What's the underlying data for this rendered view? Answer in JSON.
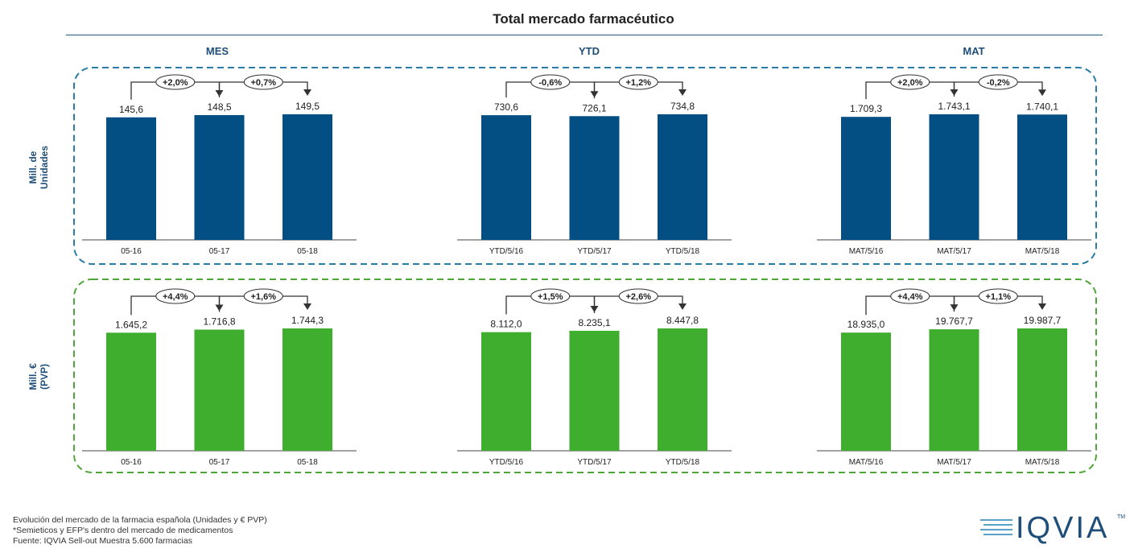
{
  "title": "Total mercado farmacéutico",
  "column_headers": [
    "MES",
    "YTD",
    "MAT"
  ],
  "row_labels": [
    {
      "lines": [
        "Mill. de",
        "Unidades"
      ]
    },
    {
      "lines": [
        "Mill. €",
        "(PVP)"
      ]
    }
  ],
  "colors": {
    "units": "#034f84",
    "euros": "#3fad2e",
    "units_frame": "#2a7ca6",
    "euros_frame": "#4fa43a",
    "header_text": "#1f4e79"
  },
  "chart_data": [
    {
      "type": "bar",
      "row": "units",
      "group": "MES",
      "categories": [
        "05-16",
        "05-17",
        "05-18"
      ],
      "values": [
        145.6,
        148.5,
        149.5
      ],
      "value_labels": [
        "145,6",
        "148,5",
        "149,5"
      ],
      "changes": [
        "+2,0%",
        "+0,7%"
      ]
    },
    {
      "type": "bar",
      "row": "units",
      "group": "YTD",
      "categories": [
        "YTD/5/16",
        "YTD/5/17",
        "YTD/5/18"
      ],
      "values": [
        730.6,
        726.1,
        734.8
      ],
      "value_labels": [
        "730,6",
        "726,1",
        "734,8"
      ],
      "changes": [
        "-0,6%",
        "+1,2%"
      ]
    },
    {
      "type": "bar",
      "row": "units",
      "group": "MAT",
      "categories": [
        "MAT/5/16",
        "MAT/5/17",
        "MAT/5/18"
      ],
      "values": [
        1709.3,
        1743.1,
        1740.1
      ],
      "value_labels": [
        "1.709,3",
        "1.743,1",
        "1.740,1"
      ],
      "changes": [
        "+2,0%",
        "-0,2%"
      ]
    },
    {
      "type": "bar",
      "row": "euros",
      "group": "MES",
      "categories": [
        "05-16",
        "05-17",
        "05-18"
      ],
      "values": [
        1645.2,
        1716.8,
        1744.3
      ],
      "value_labels": [
        "1.645,2",
        "1.716,8",
        "1.744,3"
      ],
      "changes": [
        "+4,4%",
        "+1,6%"
      ]
    },
    {
      "type": "bar",
      "row": "euros",
      "group": "YTD",
      "categories": [
        "YTD/5/16",
        "YTD/5/17",
        "YTD/5/18"
      ],
      "values": [
        8112.0,
        8235.1,
        8447.8
      ],
      "value_labels": [
        "8.112,0",
        "8.235,1",
        "8.447,8"
      ],
      "changes": [
        "+1,5%",
        "+2,6%"
      ]
    },
    {
      "type": "bar",
      "row": "euros",
      "group": "MAT",
      "categories": [
        "MAT/5/16",
        "MAT/5/17",
        "MAT/5/18"
      ],
      "values": [
        18935.0,
        19767.7,
        19987.7
      ],
      "value_labels": [
        "18.935,0",
        "19.767,7",
        "19.987,7"
      ],
      "changes": [
        "+4,4%",
        "+1,1%"
      ]
    }
  ],
  "footnotes": [
    "Evolución del mercado de la farmacia española (Unidades y € PVP)",
    "*Semieticos y EFP's dentro del mercado de medicamentos",
    "Fuente: IQVIA Sell-out Muestra 5.600 farmacias"
  ],
  "logo": {
    "text": "IQVIA",
    "tm": "TM"
  }
}
